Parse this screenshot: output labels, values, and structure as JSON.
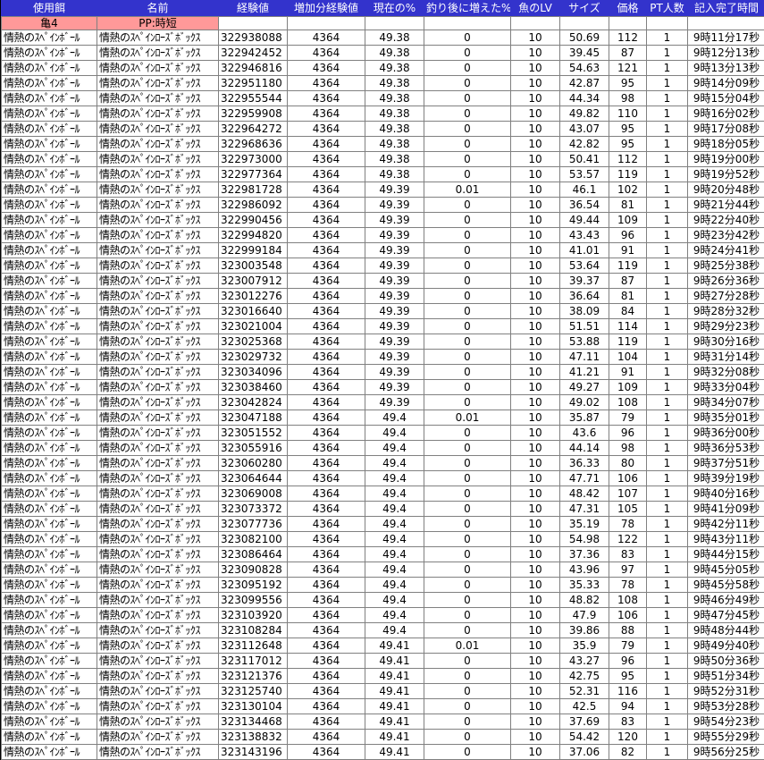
{
  "table": {
    "columns": [
      "使用餌",
      "名前",
      "経験値",
      "増加分経験値",
      "現在の%",
      "釣り後に増えた%",
      "魚のLV",
      "サイズ",
      "価格",
      "PT人数",
      "記入完了時間"
    ],
    "preset_row": {
      "bait": "亀4",
      "name": "PP:時短"
    },
    "row_constants": {
      "bait": "情熱のｽﾍﾟｲﾝﾎﾞｰﾙ",
      "name": "情熱のｽﾍﾟｲﾝﾛｰｽﾞﾎﾞｯｸｽ",
      "added_exp": "4364",
      "fish_lv": "10",
      "pt_count": "1"
    },
    "rows": [
      [
        "322938088",
        "49.38",
        "0",
        "50.69",
        "112",
        "9時11分17秒"
      ],
      [
        "322942452",
        "49.38",
        "0",
        "39.45",
        "87",
        "9時12分13秒"
      ],
      [
        "322946816",
        "49.38",
        "0",
        "54.63",
        "121",
        "9時13分13秒"
      ],
      [
        "322951180",
        "49.38",
        "0",
        "42.87",
        "95",
        "9時14分09秒"
      ],
      [
        "322955544",
        "49.38",
        "0",
        "44.34",
        "98",
        "9時15分04秒"
      ],
      [
        "322959908",
        "49.38",
        "0",
        "49.82",
        "110",
        "9時16分02秒"
      ],
      [
        "322964272",
        "49.38",
        "0",
        "43.07",
        "95",
        "9時17分08秒"
      ],
      [
        "322968636",
        "49.38",
        "0",
        "42.82",
        "95",
        "9時18分05秒"
      ],
      [
        "322973000",
        "49.38",
        "0",
        "50.41",
        "112",
        "9時19分00秒"
      ],
      [
        "322977364",
        "49.38",
        "0",
        "53.57",
        "119",
        "9時19分52秒"
      ],
      [
        "322981728",
        "49.39",
        "0.01",
        "46.1",
        "102",
        "9時20分48秒"
      ],
      [
        "322986092",
        "49.39",
        "0",
        "36.54",
        "81",
        "9時21分44秒"
      ],
      [
        "322990456",
        "49.39",
        "0",
        "49.44",
        "109",
        "9時22分40秒"
      ],
      [
        "322994820",
        "49.39",
        "0",
        "43.43",
        "96",
        "9時23分42秒"
      ],
      [
        "322999184",
        "49.39",
        "0",
        "41.01",
        "91",
        "9時24分41秒"
      ],
      [
        "323003548",
        "49.39",
        "0",
        "53.64",
        "119",
        "9時25分38秒"
      ],
      [
        "323007912",
        "49.39",
        "0",
        "39.37",
        "87",
        "9時26分36秒"
      ],
      [
        "323012276",
        "49.39",
        "0",
        "36.64",
        "81",
        "9時27分28秒"
      ],
      [
        "323016640",
        "49.39",
        "0",
        "38.09",
        "84",
        "9時28分32秒"
      ],
      [
        "323021004",
        "49.39",
        "0",
        "51.51",
        "114",
        "9時29分23秒"
      ],
      [
        "323025368",
        "49.39",
        "0",
        "53.88",
        "119",
        "9時30分16秒"
      ],
      [
        "323029732",
        "49.39",
        "0",
        "47.11",
        "104",
        "9時31分14秒"
      ],
      [
        "323034096",
        "49.39",
        "0",
        "41.21",
        "91",
        "9時32分08秒"
      ],
      [
        "323038460",
        "49.39",
        "0",
        "49.27",
        "109",
        "9時33分04秒"
      ],
      [
        "323042824",
        "49.39",
        "0",
        "49.02",
        "108",
        "9時34分07秒"
      ],
      [
        "323047188",
        "49.4",
        "0.01",
        "35.87",
        "79",
        "9時35分01秒"
      ],
      [
        "323051552",
        "49.4",
        "0",
        "43.6",
        "96",
        "9時36分00秒"
      ],
      [
        "323055916",
        "49.4",
        "0",
        "44.14",
        "98",
        "9時36分53秒"
      ],
      [
        "323060280",
        "49.4",
        "0",
        "36.33",
        "80",
        "9時37分51秒"
      ],
      [
        "323064644",
        "49.4",
        "0",
        "47.71",
        "106",
        "9時39分19秒"
      ],
      [
        "323069008",
        "49.4",
        "0",
        "48.42",
        "107",
        "9時40分16秒"
      ],
      [
        "323073372",
        "49.4",
        "0",
        "47.31",
        "105",
        "9時41分09秒"
      ],
      [
        "323077736",
        "49.4",
        "0",
        "35.19",
        "78",
        "9時42分11秒"
      ],
      [
        "323082100",
        "49.4",
        "0",
        "54.98",
        "122",
        "9時43分11秒"
      ],
      [
        "323086464",
        "49.4",
        "0",
        "37.36",
        "83",
        "9時44分15秒"
      ],
      [
        "323090828",
        "49.4",
        "0",
        "43.96",
        "97",
        "9時45分05秒"
      ],
      [
        "323095192",
        "49.4",
        "0",
        "35.33",
        "78",
        "9時45分58秒"
      ],
      [
        "323099556",
        "49.4",
        "0",
        "48.82",
        "108",
        "9時46分49秒"
      ],
      [
        "323103920",
        "49.4",
        "0",
        "47.9",
        "106",
        "9時47分45秒"
      ],
      [
        "323108284",
        "49.4",
        "0",
        "39.86",
        "88",
        "9時48分44秒"
      ],
      [
        "323112648",
        "49.41",
        "0.01",
        "35.9",
        "79",
        "9時49分40秒"
      ],
      [
        "323117012",
        "49.41",
        "0",
        "43.27",
        "96",
        "9時50分36秒"
      ],
      [
        "323121376",
        "49.41",
        "0",
        "42.75",
        "95",
        "9時51分34秒"
      ],
      [
        "323125740",
        "49.41",
        "0",
        "52.31",
        "116",
        "9時52分31秒"
      ],
      [
        "323130104",
        "49.41",
        "0",
        "42.5",
        "94",
        "9時53分28秒"
      ],
      [
        "323134468",
        "49.41",
        "0",
        "37.69",
        "83",
        "9時54分23秒"
      ],
      [
        "323138832",
        "49.41",
        "0",
        "54.42",
        "120",
        "9時55分29秒"
      ],
      [
        "323143196",
        "49.41",
        "0",
        "37.06",
        "82",
        "9時56分25秒"
      ]
    ],
    "colors": {
      "header_bg": "#3333CC",
      "header_text": "#FFFFFF",
      "preset_bg": "#FF9999",
      "grid": "#808080",
      "text": "#000000"
    }
  }
}
